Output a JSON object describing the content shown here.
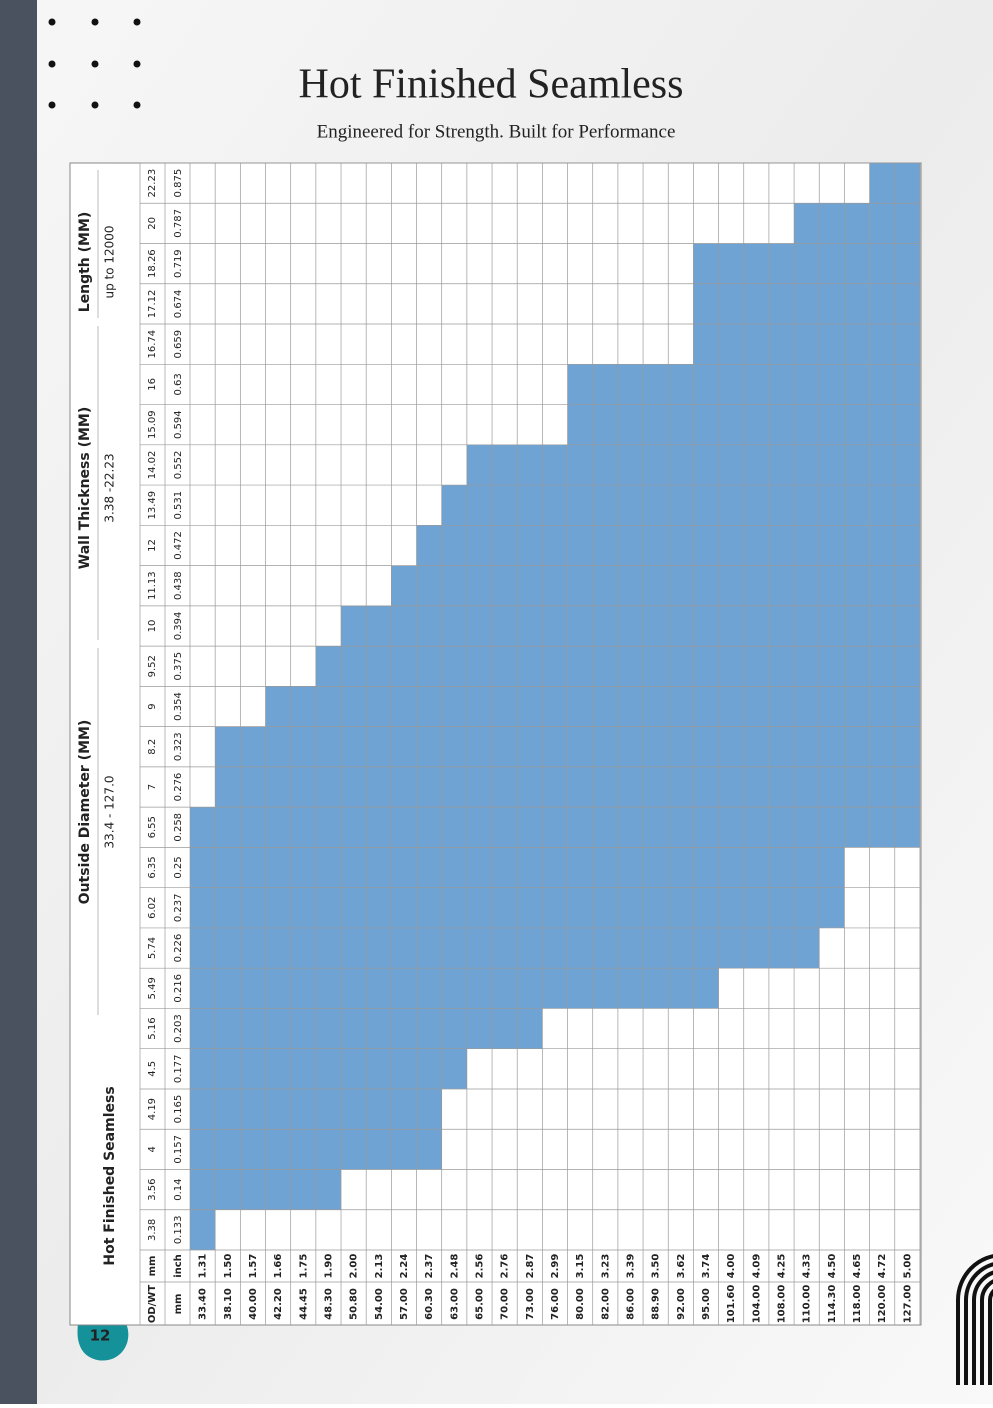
{
  "page": {
    "number": "12",
    "title": "Hot Finished Seamless",
    "subtitle": "Engineered for Strength. Built for Performance"
  },
  "table": {
    "caption": "Hot Finished Seamless",
    "corner": "OD/WT",
    "wt_mm_label": "mm",
    "wt_inch_label": "inch",
    "od_mm_label": "mm",
    "groups": [
      {
        "title": "Outside Diameter (MM)",
        "range": "33.4 - 127.0"
      },
      {
        "title": "Wall Thickness (MM)",
        "range": "3.38 -22.23"
      },
      {
        "title": "Length (MM)",
        "range": "up to 12000"
      }
    ],
    "wall_thickness": {
      "mm": [
        3.38,
        3.56,
        4,
        4.19,
        4.5,
        5.16,
        5.49,
        5.74,
        6.02,
        6.35,
        6.55,
        7,
        8.2,
        9,
        9.52,
        10,
        11.13,
        12,
        13.49,
        14.02,
        15.09,
        16,
        16.74,
        17.12,
        18.26,
        20,
        22.23
      ],
      "inch": [
        0.133,
        0.14,
        0.157,
        0.165,
        0.177,
        0.203,
        0.216,
        0.226,
        0.237,
        0.25,
        0.258,
        0.276,
        0.323,
        0.354,
        0.375,
        0.394,
        0.438,
        0.472,
        0.531,
        0.552,
        0.594,
        0.63,
        0.659,
        0.674,
        0.719,
        0.787,
        0.875
      ]
    },
    "rows": [
      {
        "mm": "33.40",
        "inch": "1.31",
        "from": 3.38,
        "to": 6.55
      },
      {
        "mm": "38.10",
        "inch": "1.50",
        "from": 3.56,
        "to": 8.2
      },
      {
        "mm": "40.00",
        "inch": "1.57",
        "from": 3.56,
        "to": 8.2
      },
      {
        "mm": "42.20",
        "inch": "1.66",
        "from": 3.56,
        "to": 9
      },
      {
        "mm": "44.45",
        "inch": "1.75",
        "from": 3.56,
        "to": 9
      },
      {
        "mm": "48.30",
        "inch": "1.90",
        "from": 3.56,
        "to": 9.52
      },
      {
        "mm": "50.80",
        "inch": "2.00",
        "from": 4,
        "to": 10
      },
      {
        "mm": "54.00",
        "inch": "2.13",
        "from": 4,
        "to": 10
      },
      {
        "mm": "57.00",
        "inch": "2.24",
        "from": 4,
        "to": 11.13
      },
      {
        "mm": "60.30",
        "inch": "2.37",
        "from": 4,
        "to": 12
      },
      {
        "mm": "63.00",
        "inch": "2.48",
        "from": 4.5,
        "to": 13.49
      },
      {
        "mm": "65.00",
        "inch": "2.56",
        "from": 5.16,
        "to": 14.02
      },
      {
        "mm": "70.00",
        "inch": "2.76",
        "from": 5.16,
        "to": 14.02
      },
      {
        "mm": "73.00",
        "inch": "2.87",
        "from": 5.16,
        "to": 14.02
      },
      {
        "mm": "76.00",
        "inch": "2.99",
        "from": 5.49,
        "to": 14.02
      },
      {
        "mm": "80.00",
        "inch": "3.15",
        "from": 5.49,
        "to": 16
      },
      {
        "mm": "82.00",
        "inch": "3.23",
        "from": 5.49,
        "to": 16
      },
      {
        "mm": "86.00",
        "inch": "3.39",
        "from": 5.49,
        "to": 16
      },
      {
        "mm": "88.90",
        "inch": "3.50",
        "from": 5.49,
        "to": 16
      },
      {
        "mm": "92.00",
        "inch": "3.62",
        "from": 5.49,
        "to": 16
      },
      {
        "mm": "95.00",
        "inch": "3.74",
        "from": 5.49,
        "to": 18.26
      },
      {
        "mm": "101.60",
        "inch": "4.00",
        "from": 5.74,
        "to": 18.26
      },
      {
        "mm": "104.00",
        "inch": "4.09",
        "from": 5.74,
        "to": 18.26
      },
      {
        "mm": "108.00",
        "inch": "4.25",
        "from": 5.74,
        "to": 18.26
      },
      {
        "mm": "110.00",
        "inch": "4.33",
        "from": 5.74,
        "to": 20
      },
      {
        "mm": "114.30",
        "inch": "4.50",
        "from": 6.02,
        "to": 20
      },
      {
        "mm": "118.00",
        "inch": "4.65",
        "from": 6.55,
        "to": 20
      },
      {
        "mm": "120.00",
        "inch": "4.72",
        "from": 6.55,
        "to": 22.23
      },
      {
        "mm": "127.00",
        "inch": "5.00",
        "from": 6.55,
        "to": 22.23
      }
    ]
  }
}
